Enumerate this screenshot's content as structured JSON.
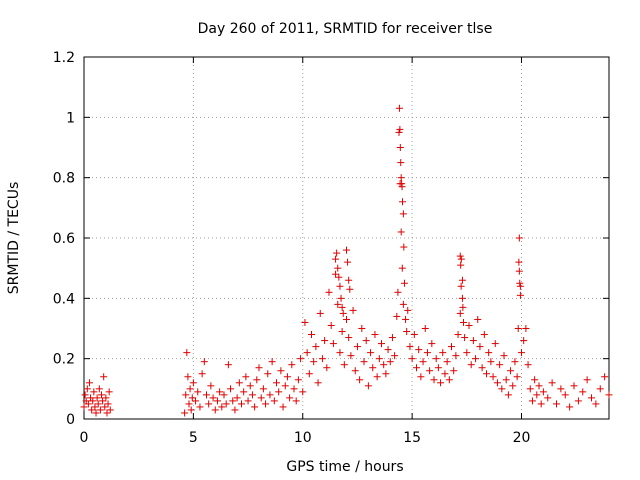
{
  "chart_data": {
    "type": "scatter",
    "title": "Day 260 of 2011, SRMTID for receiver tlse",
    "xlabel": "GPS time / hours",
    "ylabel": "SRMTID / TECUs",
    "xlim": [
      0,
      24
    ],
    "ylim": [
      0,
      1.2
    ],
    "xticks": [
      0,
      5,
      10,
      15,
      20
    ],
    "xtick_labels": [
      "0",
      "5",
      "10",
      "15",
      "20"
    ],
    "yticks": [
      0,
      0.2,
      0.4,
      0.6,
      0.8,
      1.0,
      1.2
    ],
    "ytick_labels": [
      "0",
      "0.2",
      "0.4",
      "0.6",
      "0.8",
      "1",
      "1.2"
    ],
    "grid": true,
    "marker": "+",
    "color": "#e00000",
    "series": [
      {
        "name": "SRMTID",
        "x": [
          0.0,
          0.05,
          0.1,
          0.15,
          0.2,
          0.25,
          0.3,
          0.35,
          0.4,
          0.45,
          0.5,
          0.55,
          0.6,
          0.65,
          0.7,
          0.75,
          0.8,
          0.85,
          0.9,
          0.95,
          1.0,
          1.05,
          1.1,
          1.15,
          1.2,
          4.6,
          4.65,
          4.7,
          4.75,
          4.8,
          4.85,
          4.9,
          4.95,
          5.0,
          5.1,
          5.2,
          5.3,
          5.4,
          5.5,
          5.6,
          5.7,
          5.8,
          5.9,
          6.0,
          6.1,
          6.2,
          6.3,
          6.4,
          6.5,
          6.6,
          6.7,
          6.8,
          6.9,
          7.0,
          7.1,
          7.2,
          7.3,
          7.4,
          7.5,
          7.6,
          7.7,
          7.8,
          7.9,
          8.0,
          8.1,
          8.2,
          8.3,
          8.4,
          8.5,
          8.6,
          8.7,
          8.8,
          8.9,
          9.0,
          9.1,
          9.2,
          9.3,
          9.4,
          9.5,
          9.6,
          9.7,
          9.8,
          9.9,
          10.0,
          10.1,
          10.2,
          10.3,
          10.4,
          10.5,
          10.6,
          10.7,
          10.8,
          10.9,
          11.0,
          11.1,
          11.2,
          11.3,
          11.4,
          11.5,
          11.6,
          11.7,
          11.8,
          11.9,
          12.0,
          12.1,
          12.2,
          12.3,
          12.4,
          12.5,
          12.6,
          12.7,
          12.8,
          12.9,
          13.0,
          13.1,
          13.2,
          13.3,
          13.4,
          13.5,
          13.6,
          13.7,
          13.8,
          13.9,
          14.0,
          14.1,
          14.2,
          14.3,
          14.35,
          14.4,
          14.45,
          14.5,
          14.55,
          14.6,
          14.65,
          14.7,
          14.75,
          14.8,
          14.9,
          15.0,
          15.1,
          15.2,
          15.3,
          15.4,
          15.5,
          15.6,
          15.7,
          15.8,
          15.9,
          16.0,
          16.1,
          16.2,
          16.3,
          16.4,
          16.5,
          16.6,
          16.7,
          16.8,
          16.9,
          17.0,
          17.1,
          17.2,
          17.25,
          17.3,
          17.35,
          17.4,
          17.5,
          17.6,
          17.7,
          17.8,
          17.9,
          18.0,
          18.1,
          18.2,
          18.3,
          18.4,
          18.5,
          18.6,
          18.7,
          18.8,
          18.9,
          19.0,
          19.1,
          19.2,
          19.3,
          19.4,
          19.5,
          19.6,
          19.7,
          19.8,
          19.85,
          19.9,
          19.95,
          20.0,
          20.1,
          20.2,
          20.3,
          20.4,
          20.5,
          20.6,
          20.7,
          20.8,
          20.9,
          21.0,
          21.2,
          21.4,
          21.6,
          21.8,
          22.0,
          22.2,
          22.4,
          22.6,
          22.8,
          23.0,
          23.2,
          23.4,
          23.6,
          23.8,
          24.0,
          14.42,
          14.44,
          14.46,
          14.48,
          14.5,
          14.52,
          14.54,
          14.56,
          14.6,
          14.62,
          19.88,
          19.9,
          19.92,
          19.95,
          11.5,
          11.55,
          11.6,
          11.65,
          11.7,
          11.75,
          11.8,
          11.85,
          12.0,
          12.05,
          12.1,
          12.15,
          17.2,
          17.22,
          17.24,
          17.3,
          17.32
        ],
        "y": [
          0.04,
          0.08,
          0.06,
          0.1,
          0.05,
          0.12,
          0.07,
          0.03,
          0.06,
          0.09,
          0.04,
          0.02,
          0.07,
          0.05,
          0.1,
          0.03,
          0.08,
          0.06,
          0.14,
          0.04,
          0.07,
          0.02,
          0.05,
          0.09,
          0.03,
          0.02,
          0.08,
          0.22,
          0.14,
          0.05,
          0.1,
          0.03,
          0.07,
          0.12,
          0.06,
          0.09,
          0.04,
          0.15,
          0.19,
          0.08,
          0.05,
          0.11,
          0.07,
          0.03,
          0.06,
          0.09,
          0.04,
          0.08,
          0.05,
          0.18,
          0.1,
          0.06,
          0.03,
          0.07,
          0.12,
          0.05,
          0.09,
          0.14,
          0.06,
          0.11,
          0.08,
          0.04,
          0.13,
          0.17,
          0.07,
          0.1,
          0.05,
          0.15,
          0.08,
          0.19,
          0.06,
          0.12,
          0.09,
          0.16,
          0.04,
          0.11,
          0.14,
          0.07,
          0.18,
          0.1,
          0.06,
          0.13,
          0.2,
          0.09,
          0.32,
          0.22,
          0.15,
          0.28,
          0.19,
          0.24,
          0.12,
          0.35,
          0.2,
          0.26,
          0.17,
          0.42,
          0.31,
          0.25,
          0.48,
          0.38,
          0.22,
          0.29,
          0.18,
          0.33,
          0.27,
          0.21,
          0.36,
          0.16,
          0.24,
          0.13,
          0.3,
          0.19,
          0.26,
          0.11,
          0.22,
          0.17,
          0.28,
          0.14,
          0.2,
          0.25,
          0.18,
          0.15,
          0.23,
          0.19,
          0.27,
          0.21,
          0.34,
          0.42,
          0.95,
          0.78,
          0.62,
          0.5,
          0.38,
          0.45,
          0.33,
          0.29,
          0.36,
          0.24,
          0.2,
          0.28,
          0.17,
          0.23,
          0.14,
          0.19,
          0.3,
          0.22,
          0.16,
          0.25,
          0.13,
          0.2,
          0.17,
          0.12,
          0.22,
          0.15,
          0.19,
          0.13,
          0.24,
          0.16,
          0.21,
          0.28,
          0.35,
          0.53,
          0.46,
          0.32,
          0.27,
          0.22,
          0.31,
          0.18,
          0.26,
          0.2,
          0.33,
          0.24,
          0.17,
          0.28,
          0.15,
          0.22,
          0.19,
          0.14,
          0.25,
          0.12,
          0.18,
          0.1,
          0.21,
          0.13,
          0.08,
          0.16,
          0.11,
          0.19,
          0.14,
          0.3,
          0.6,
          0.44,
          0.22,
          0.26,
          0.3,
          0.18,
          0.1,
          0.06,
          0.13,
          0.08,
          0.11,
          0.05,
          0.09,
          0.07,
          0.12,
          0.05,
          0.1,
          0.08,
          0.04,
          0.11,
          0.06,
          0.09,
          0.13,
          0.07,
          0.05,
          0.1,
          0.14,
          0.08,
          1.03,
          0.96,
          0.9,
          0.85,
          0.8,
          0.78,
          0.77,
          0.72,
          0.68,
          0.57,
          0.52,
          0.49,
          0.45,
          0.41,
          0.53,
          0.55,
          0.5,
          0.47,
          0.44,
          0.4,
          0.37,
          0.35,
          0.56,
          0.52,
          0.46,
          0.43,
          0.54,
          0.51,
          0.44,
          0.4,
          0.37
        ]
      }
    ]
  }
}
